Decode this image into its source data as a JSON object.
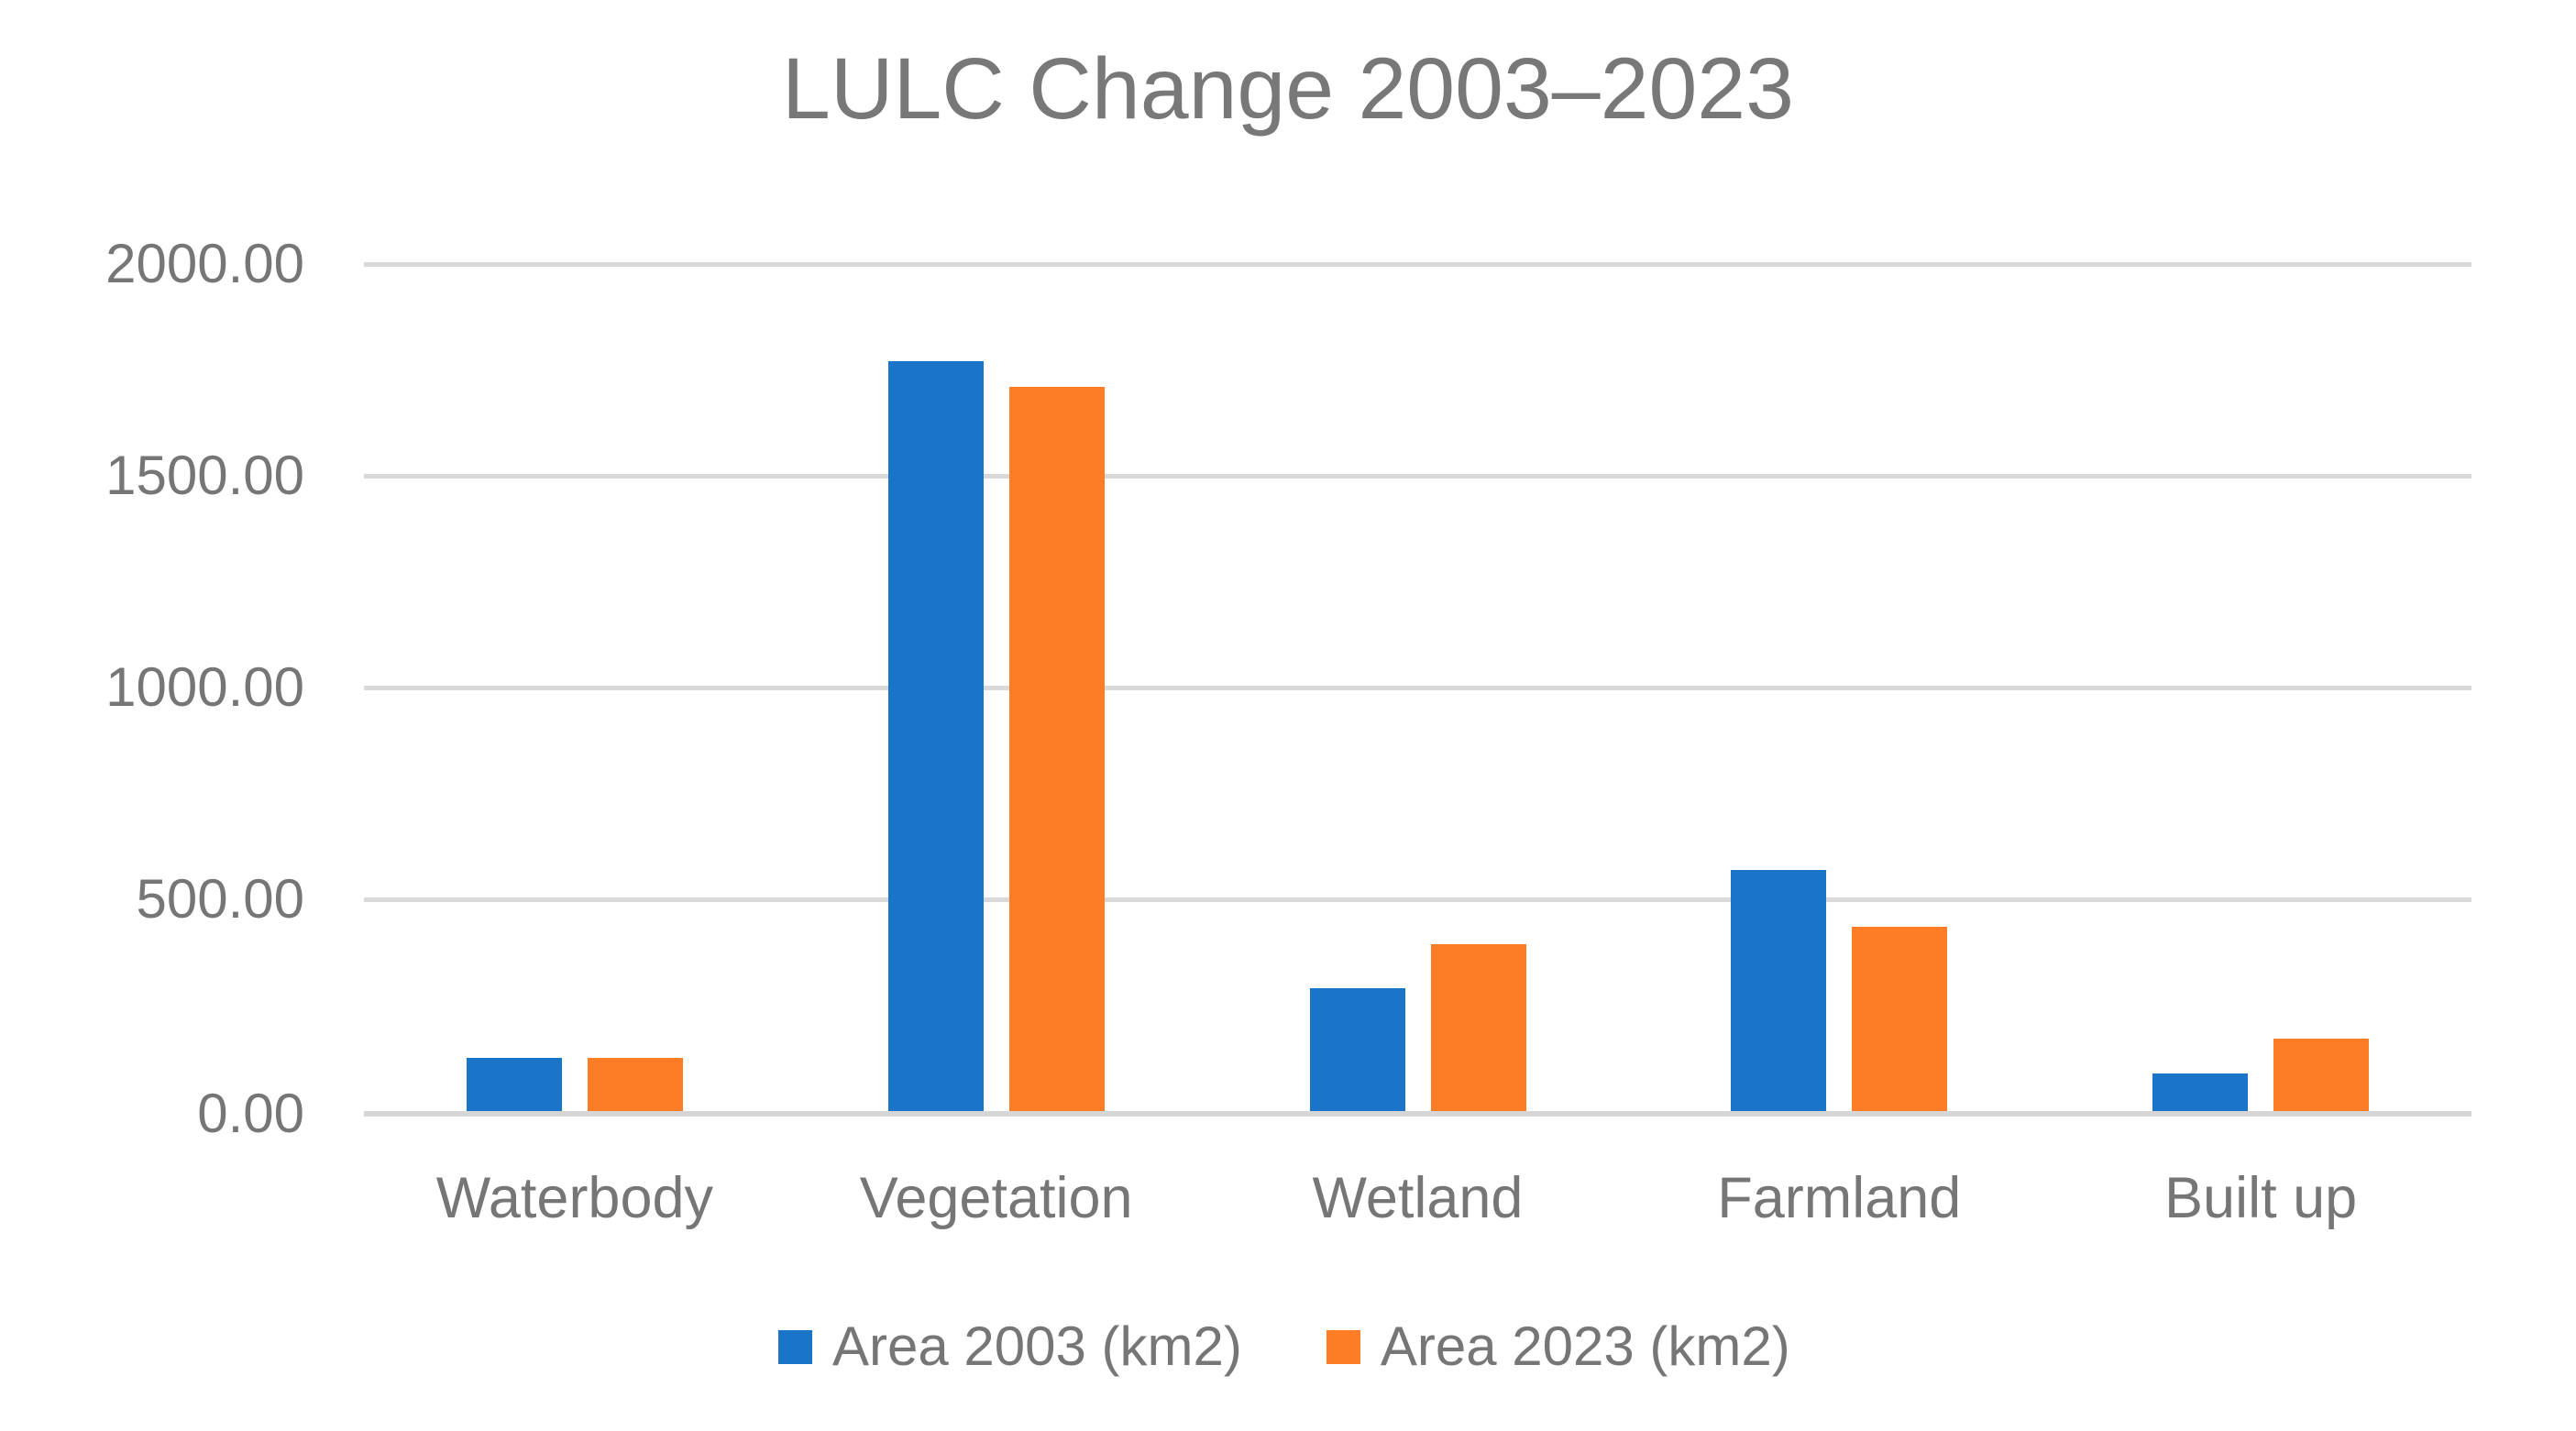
{
  "chart_data": {
    "type": "bar",
    "title": "LULC Change 2003–2023",
    "categories": [
      "Waterbody",
      "Vegetation",
      "Wetland",
      "Farmland",
      "Built up"
    ],
    "series": [
      {
        "name": "Area 2003 (km2)",
        "color": "#1a74c8",
        "values": [
          125,
          1770,
          290,
          570,
          88
        ]
      },
      {
        "name": "Area 2023 (km2)",
        "color": "#fc7d26",
        "values": [
          125,
          1710,
          395,
          435,
          170
        ]
      }
    ],
    "y_axis": {
      "min": 0,
      "max": 2000,
      "step": 500,
      "tick_labels": [
        "0.00",
        "500.00",
        "1000.00",
        "1500.00",
        "2000.00"
      ]
    },
    "x_axis_label": "",
    "y_axis_label": "",
    "grid": true,
    "legend_position": "bottom",
    "colors": {
      "gridline": "#d9d9d9",
      "axis_line": "#d6d6d6",
      "text": "#767676",
      "title_text": "#787878",
      "background": "#ffffff"
    }
  }
}
